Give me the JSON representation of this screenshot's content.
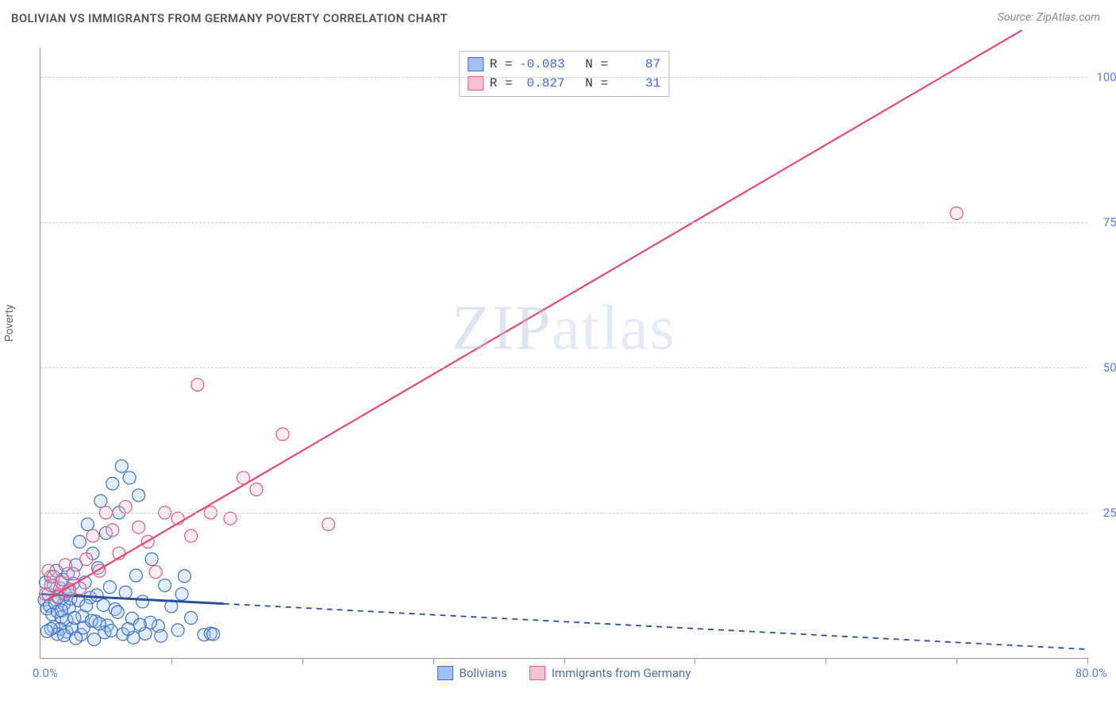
{
  "title": "BOLIVIAN VS IMMIGRANTS FROM GERMANY POVERTY CORRELATION CHART",
  "source": "Source: ZipAtlas.com",
  "y_axis_label": "Poverty",
  "watermark_a": "ZIP",
  "watermark_b": "atlas",
  "chart": {
    "type": "scatter",
    "xlim": [
      0,
      80
    ],
    "ylim": [
      0,
      105
    ],
    "x_tick_step": 10,
    "x_start_label": "0.0%",
    "x_end_label": "80.0%",
    "y_ticks": [
      {
        "v": 25,
        "label": "25.0%"
      },
      {
        "v": 50,
        "label": "50.0%"
      },
      {
        "v": 75,
        "label": "75.0%"
      },
      {
        "v": 100,
        "label": "100.0%"
      }
    ],
    "grid_dash": true,
    "grid_color": "#cccccc",
    "axis_color": "#999999",
    "background_color": "#ffffff",
    "tick_label_color": "#5b7fd9",
    "tick_label_fontsize": 15,
    "title_fontsize": 15,
    "title_color": "#555555",
    "marker_radius": 8,
    "marker_stroke_width": 1.2,
    "marker_fill_opacity": 0.3,
    "series": [
      {
        "name": "Bolivians",
        "color_fill": "#9fc2f2",
        "color_stroke": "#3f6fc5",
        "stats_R": "-0.083",
        "stats_N": "87",
        "trend": {
          "x1": 0,
          "y1": 11,
          "x2": 80,
          "y2": 1.5,
          "solid_until_x": 14,
          "color": "#2c4e9b",
          "width": 3,
          "dash": "7,6"
        },
        "points": [
          [
            0.3,
            10
          ],
          [
            0.4,
            13
          ],
          [
            0.5,
            8.5
          ],
          [
            0.6,
            11
          ],
          [
            0.7,
            9
          ],
          [
            0.8,
            14
          ],
          [
            0.9,
            7.5
          ],
          [
            1.0,
            12.5
          ],
          [
            1.1,
            9.5
          ],
          [
            1.2,
            15
          ],
          [
            1.3,
            8
          ],
          [
            1.4,
            10.5
          ],
          [
            1.5,
            12
          ],
          [
            1.6,
            7
          ],
          [
            1.7,
            13.5
          ],
          [
            1.8,
            9.3
          ],
          [
            1.9,
            11
          ],
          [
            2.0,
            6.5
          ],
          [
            2.1,
            14.5
          ],
          [
            2.2,
            8.7
          ],
          [
            2.3,
            10.2
          ],
          [
            2.5,
            12.8
          ],
          [
            2.7,
            16
          ],
          [
            2.9,
            9.9
          ],
          [
            3.0,
            20
          ],
          [
            3.2,
            7.2
          ],
          [
            3.4,
            13
          ],
          [
            3.6,
            23
          ],
          [
            3.8,
            10.4
          ],
          [
            4.0,
            18
          ],
          [
            4.2,
            6.3
          ],
          [
            4.4,
            15.5
          ],
          [
            4.6,
            27
          ],
          [
            4.8,
            9.1
          ],
          [
            5.0,
            21.5
          ],
          [
            5.3,
            12.2
          ],
          [
            5.5,
            30
          ],
          [
            5.7,
            8.4
          ],
          [
            6.0,
            25
          ],
          [
            6.2,
            33
          ],
          [
            6.5,
            11.3
          ],
          [
            6.8,
            31
          ],
          [
            7.0,
            6.8
          ],
          [
            7.3,
            14.2
          ],
          [
            7.5,
            28
          ],
          [
            7.8,
            9.7
          ],
          [
            8.0,
            4.2
          ],
          [
            8.5,
            17
          ],
          [
            9.0,
            5.5
          ],
          [
            9.5,
            12.5
          ],
          [
            10,
            8.9
          ],
          [
            10.5,
            4.8
          ],
          [
            11,
            14.1
          ],
          [
            11.5,
            6.9
          ],
          [
            2.0,
            4.5
          ],
          [
            2.4,
            5.1
          ],
          [
            3.1,
            4.0
          ],
          [
            4.1,
            3.2
          ],
          [
            5.1,
            5.6
          ],
          [
            6.3,
            4.1
          ],
          [
            7.1,
            3.5
          ],
          [
            8.4,
            6.1
          ],
          [
            1.5,
            5.0
          ],
          [
            2.7,
            3.4
          ],
          [
            4.9,
            4.4
          ],
          [
            7.6,
            5.7
          ],
          [
            9.2,
            3.8
          ],
          [
            10.8,
            11
          ],
          [
            12.5,
            4.0
          ],
          [
            13,
            4.2
          ],
          [
            13.2,
            4.1
          ],
          [
            1.0,
            5.3
          ],
          [
            1.3,
            4.1
          ],
          [
            1.8,
            3.9
          ],
          [
            2.6,
            6.9
          ],
          [
            3.3,
            5.2
          ],
          [
            3.9,
            6.4
          ],
          [
            4.5,
            5.9
          ],
          [
            5.4,
            4.7
          ],
          [
            6.7,
            5.0
          ],
          [
            2.2,
            11.8
          ],
          [
            3.5,
            9.0
          ],
          [
            1.6,
            8.2
          ],
          [
            0.8,
            5.0
          ],
          [
            0.5,
            4.6
          ],
          [
            4.3,
            10.8
          ],
          [
            5.9,
            7.9
          ]
        ]
      },
      {
        "name": "Immigants from Germany",
        "legend_label": "Immigrants from Germany",
        "color_fill": "#f6c3cf",
        "color_stroke": "#e15b80",
        "stats_R": "0.827",
        "stats_N": "31",
        "trend": {
          "x1": 0.5,
          "y1": 10,
          "x2": 75,
          "y2": 108,
          "color": "#e34b77",
          "width": 2.2
        },
        "points": [
          [
            0.4,
            11
          ],
          [
            0.6,
            15
          ],
          [
            0.8,
            12.5
          ],
          [
            1.0,
            14
          ],
          [
            1.3,
            10.5
          ],
          [
            1.6,
            13
          ],
          [
            1.9,
            16
          ],
          [
            2.2,
            11.5
          ],
          [
            2.5,
            14.5
          ],
          [
            3.0,
            12
          ],
          [
            3.5,
            17
          ],
          [
            4.0,
            21
          ],
          [
            4.5,
            15
          ],
          [
            5.0,
            25
          ],
          [
            5.5,
            22
          ],
          [
            6.0,
            18
          ],
          [
            6.5,
            26
          ],
          [
            7.5,
            22.5
          ],
          [
            8.2,
            20
          ],
          [
            9.5,
            25
          ],
          [
            10.5,
            24
          ],
          [
            11.5,
            21
          ],
          [
            13,
            25
          ],
          [
            14.5,
            24
          ],
          [
            15.5,
            31
          ],
          [
            16.5,
            29
          ],
          [
            18.5,
            38.5
          ],
          [
            22,
            23
          ],
          [
            12,
            47
          ],
          [
            8.8,
            14.8
          ],
          [
            70,
            76.5
          ]
        ]
      }
    ]
  },
  "stats_legend_labels": {
    "R": "R =",
    "N": "N ="
  }
}
